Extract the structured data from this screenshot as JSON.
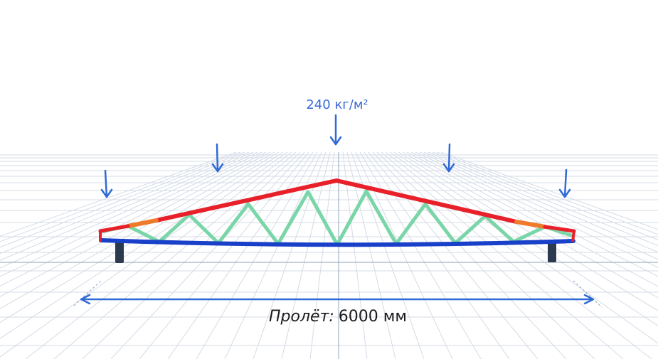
{
  "load": {
    "label": "240 кг/м²"
  },
  "span": {
    "label_prefix": "Пролёт:",
    "label_value": "6000 мм"
  },
  "colors": {
    "top_chord": "#e8202a",
    "top_chord_end": "#ee7a2a",
    "bottom_chord": "#1840c8",
    "web": "#7ad6a8",
    "support": "#2b3a4e",
    "arrow": "#2f6ad6",
    "grid": "#d4dbe6",
    "axis": "#8fa3bd"
  },
  "icons": {
    "load_arrow": "down-arrow",
    "span_arrow": "double-headed-arrow"
  }
}
